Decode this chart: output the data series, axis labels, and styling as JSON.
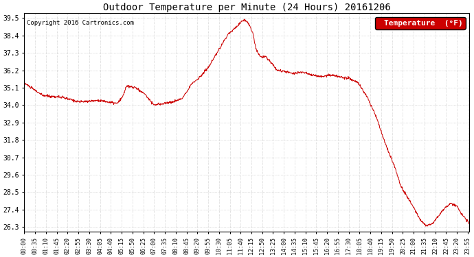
{
  "title": "Outdoor Temperature per Minute (24 Hours) 20161206",
  "copyright_text": "Copyright 2016 Cartronics.com",
  "legend_label": "Temperature  (°F)",
  "line_color": "#cc0000",
  "legend_bg": "#cc0000",
  "legend_text_color": "#ffffff",
  "background_color": "#ffffff",
  "grid_color": "#bbbbbb",
  "yticks": [
    26.3,
    27.4,
    28.5,
    29.6,
    30.7,
    31.8,
    32.9,
    34.0,
    35.1,
    36.2,
    37.3,
    38.4,
    39.5
  ],
  "ylim": [
    26.0,
    39.8
  ],
  "total_minutes": 1440,
  "xtick_interval": 35,
  "key_times_minutes": [
    0,
    60,
    120,
    180,
    240,
    300,
    310,
    320,
    330,
    360,
    390,
    420,
    450,
    480,
    510,
    540,
    570,
    600,
    630,
    660,
    690,
    700,
    710,
    720,
    730,
    740,
    750,
    760,
    770,
    780,
    820,
    850,
    870,
    900,
    930,
    960,
    990,
    1020,
    1050,
    1080,
    1110,
    1140,
    1160,
    1180,
    1200,
    1220,
    1240,
    1260,
    1280,
    1300,
    1320,
    1340,
    1360,
    1380,
    1400,
    1420,
    1440
  ],
  "key_temps": [
    35.4,
    34.6,
    34.5,
    34.2,
    34.3,
    34.1,
    34.3,
    34.6,
    35.2,
    35.1,
    34.7,
    34.0,
    34.1,
    34.2,
    34.4,
    35.3,
    35.8,
    36.5,
    37.5,
    38.5,
    39.0,
    39.2,
    39.4,
    39.3,
    39.0,
    38.5,
    37.5,
    37.2,
    37.0,
    37.1,
    36.2,
    36.1,
    36.0,
    36.1,
    35.9,
    35.8,
    35.9,
    35.8,
    35.7,
    35.4,
    34.5,
    33.2,
    32.0,
    31.0,
    30.0,
    28.8,
    28.2,
    27.5,
    26.8,
    26.4,
    26.5,
    27.0,
    27.5,
    27.8,
    27.6,
    27.0,
    26.5
  ]
}
